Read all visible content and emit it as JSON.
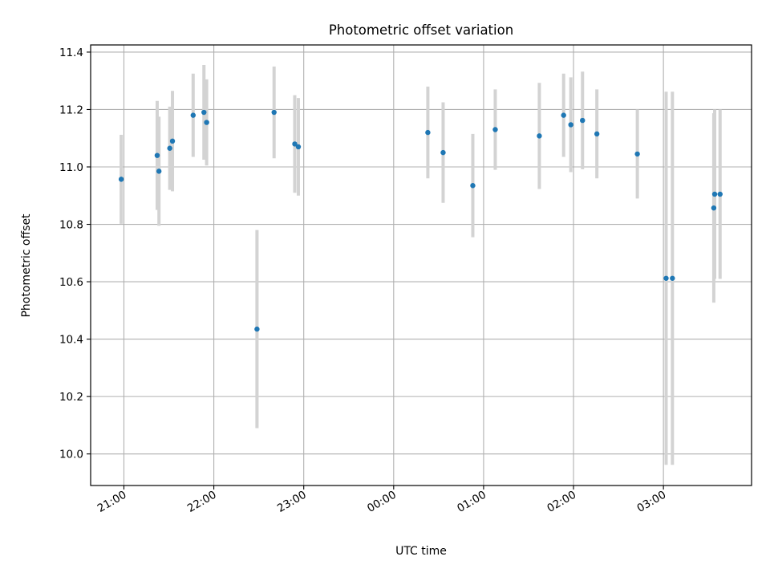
{
  "chart_data": {
    "type": "scatter",
    "title": "Photometric offset variation",
    "xlabel": "UTC time",
    "ylabel": "Photometric offset",
    "x_unit": "hours relative to 00:00 UTC (negative = previous evening)",
    "xlim": [
      -3.37,
      3.98
    ],
    "ylim": [
      9.89,
      11.425
    ],
    "xticks": [
      -3,
      -2,
      -1,
      0,
      1,
      2,
      3
    ],
    "xtick_labels": [
      "21:00",
      "22:00",
      "23:00",
      "00:00",
      "01:00",
      "02:00",
      "03:00"
    ],
    "yticks": [
      10.0,
      10.2,
      10.4,
      10.6,
      10.8,
      11.0,
      11.2,
      11.4
    ],
    "ytick_labels": [
      "10.0",
      "10.2",
      "10.4",
      "10.6",
      "10.8",
      "11.0",
      "11.2",
      "11.4"
    ],
    "grid": true,
    "marker_color": "#1f77b4",
    "errorbar_color": "#d3d3d3",
    "points": [
      {
        "x": -3.03,
        "y": 10.957,
        "yerr": 0.155
      },
      {
        "x": -2.63,
        "y": 11.04,
        "yerr": 0.19
      },
      {
        "x": -2.61,
        "y": 10.985,
        "yerr": 0.19
      },
      {
        "x": -2.49,
        "y": 11.065,
        "yerr": 0.145
      },
      {
        "x": -2.46,
        "y": 11.09,
        "yerr": 0.175
      },
      {
        "x": -2.23,
        "y": 11.18,
        "yerr": 0.145
      },
      {
        "x": -2.11,
        "y": 11.19,
        "yerr": 0.165
      },
      {
        "x": -2.08,
        "y": 11.155,
        "yerr": 0.15
      },
      {
        "x": -1.52,
        "y": 10.435,
        "yerr": 0.345
      },
      {
        "x": -1.33,
        "y": 11.19,
        "yerr": 0.16
      },
      {
        "x": -1.1,
        "y": 11.08,
        "yerr": 0.17
      },
      {
        "x": -1.06,
        "y": 11.07,
        "yerr": 0.17
      },
      {
        "x": 0.38,
        "y": 11.12,
        "yerr": 0.16
      },
      {
        "x": 0.55,
        "y": 11.05,
        "yerr": 0.175
      },
      {
        "x": 0.88,
        "y": 10.935,
        "yerr": 0.18
      },
      {
        "x": 1.13,
        "y": 11.13,
        "yerr": 0.14
      },
      {
        "x": 1.62,
        "y": 11.108,
        "yerr": 0.185
      },
      {
        "x": 1.89,
        "y": 11.18,
        "yerr": 0.145
      },
      {
        "x": 1.97,
        "y": 11.147,
        "yerr": 0.165
      },
      {
        "x": 2.1,
        "y": 11.162,
        "yerr": 0.17
      },
      {
        "x": 2.26,
        "y": 11.115,
        "yerr": 0.155
      },
      {
        "x": 2.71,
        "y": 11.045,
        "yerr": 0.155
      },
      {
        "x": 3.03,
        "y": 10.612,
        "yerr": 0.65
      },
      {
        "x": 3.1,
        "y": 10.612,
        "yerr": 0.65
      },
      {
        "x": 3.56,
        "y": 10.857,
        "yerr": 0.33
      },
      {
        "x": 3.57,
        "y": 10.905,
        "yerr": 0.295
      },
      {
        "x": 3.63,
        "y": 10.905,
        "yerr": 0.295
      }
    ]
  }
}
